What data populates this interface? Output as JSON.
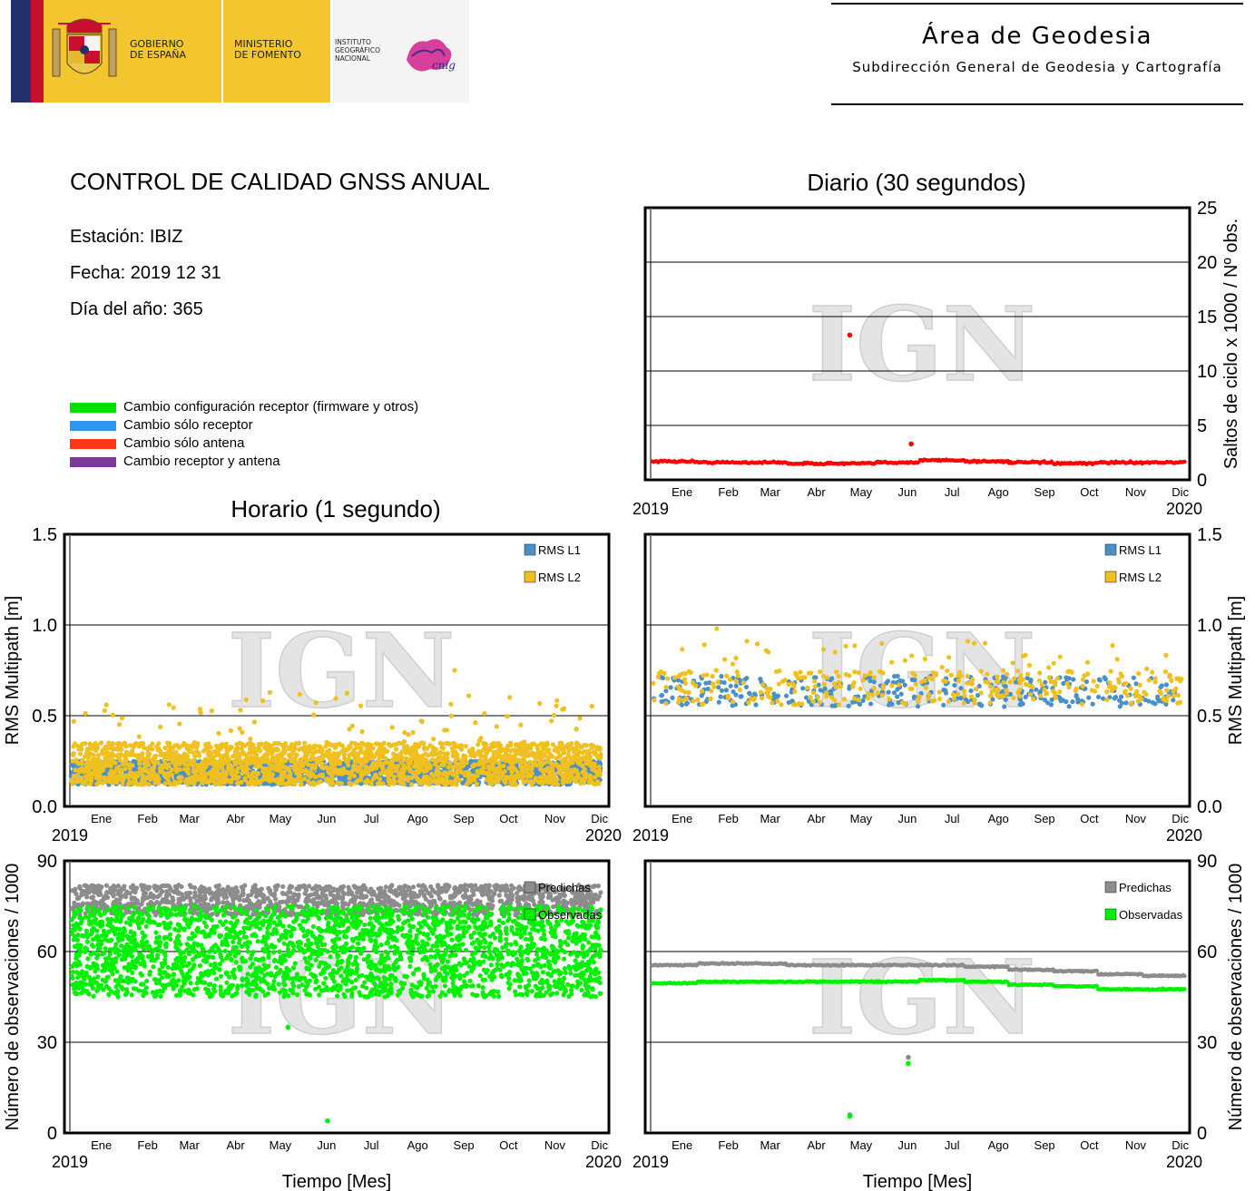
{
  "banner": {
    "government": [
      "GOBIERNO",
      "DE ESPAÑA"
    ],
    "ministry": [
      "MINISTERIO",
      "DE FOMENTO"
    ],
    "institute": [
      "INSTITUTO",
      "GEOGRÁFICO",
      "NACIONAL"
    ],
    "cnig_logo_text": "cnig"
  },
  "header": {
    "title": "Área de Geodesia",
    "subtitle": "Subdirección General de Geodesia y Cartografía"
  },
  "report": {
    "title": "CONTROL DE CALIDAD GNSS ANUAL",
    "station": "Estación: IBIZ",
    "date": "Fecha: 2019 12 31",
    "doy": "Día del año: 365"
  },
  "legend": [
    {
      "label": "Cambio configuración receptor (firmware y otros)",
      "color": "#00e000"
    },
    {
      "label": "Cambio sólo receptor",
      "color": "#2c96f0"
    },
    {
      "label": "Cambio sólo antena",
      "color": "#ff3a10"
    },
    {
      "label": "Cambio receptor y antena",
      "color": "#7a3a96"
    }
  ],
  "watermark": "IGN",
  "section_titles": {
    "daily": "Diario (30 segundos)",
    "hourly": "Horario (1 segundo)"
  },
  "months": [
    "Ene",
    "Feb",
    "Mar",
    "Abr",
    "May",
    "Jun",
    "Jul",
    "Ago",
    "Sep",
    "Oct",
    "Nov",
    "Dic"
  ],
  "year_start": "2019",
  "year_end": "2020",
  "colors": {
    "slips": "#ff0000",
    "rms_l1": "#4a90c8",
    "rms_l2": "#f0c020",
    "predicted": "#8c8c8c",
    "observed": "#00f000"
  },
  "chart_data": [
    {
      "id": "daily-slips",
      "type": "scatter",
      "section": "Diario (30 segundos)",
      "ylabel": "Saltos de ciclo x 1000 / Nº obs.",
      "ylim": [
        0,
        25
      ],
      "yticks": [
        0,
        5,
        10,
        15,
        20,
        25
      ],
      "grid": true,
      "series": [
        {
          "color": "#ff0000",
          "baseline_by_month": [
            1.7,
            1.6,
            1.6,
            1.5,
            1.5,
            1.6,
            1.8,
            1.7,
            1.6,
            1.5,
            1.6,
            1.6
          ],
          "outliers": [
            {
              "doy": 135,
              "value": 13.3
            },
            {
              "doy": 177,
              "value": 3.3
            }
          ]
        }
      ]
    },
    {
      "id": "hourly-multipath",
      "type": "scatter",
      "section": "Horario (1 segundo)",
      "ylabel": "RMS Multipath [m]",
      "ylim": [
        0,
        1.5
      ],
      "yticks": [
        0.0,
        0.5,
        1.0,
        1.5
      ],
      "grid": true,
      "series": [
        {
          "name": "RMS L1",
          "color": "#4a90c8",
          "typical_range": [
            0.12,
            0.25
          ]
        },
        {
          "name": "RMS L2",
          "color": "#f0c020",
          "typical_range": [
            0.12,
            0.35
          ],
          "max": 0.75
        }
      ]
    },
    {
      "id": "daily-multipath",
      "type": "scatter",
      "section": "Diario (30 segundos)",
      "ylabel": "RMS Multipath [m]",
      "ylim": [
        0,
        1.5
      ],
      "yticks": [
        0.0,
        0.5,
        1.0,
        1.5
      ],
      "grid": true,
      "series": [
        {
          "name": "RMS L1",
          "color": "#4a90c8",
          "typical_range": [
            0.55,
            0.72
          ]
        },
        {
          "name": "RMS L2",
          "color": "#f0c020",
          "typical_range": [
            0.56,
            0.75
          ],
          "max": 0.98
        }
      ]
    },
    {
      "id": "hourly-observations",
      "type": "scatter",
      "section": "Horario (1 segundo)",
      "xlabel": "Tiempo [Mes]",
      "ylabel": "Número de observaciones / 1000",
      "ylim": [
        0,
        90
      ],
      "yticks": [
        0,
        30,
        60,
        90
      ],
      "grid": true,
      "series": [
        {
          "name": "Predichas",
          "color": "#8c8c8c",
          "typical_range": [
            72,
            82
          ]
        },
        {
          "name": "Observadas",
          "color": "#00f000",
          "typical_range": [
            45,
            75
          ],
          "outliers": [
            {
              "doy": 175,
              "value": 4
            },
            {
              "doy": 148,
              "value": 35
            }
          ]
        }
      ]
    },
    {
      "id": "daily-observations",
      "type": "scatter",
      "section": "Diario (30 segundos)",
      "xlabel": "Tiempo [Mes]",
      "ylabel": "Número de observaciones / 1000",
      "ylim": [
        0,
        90
      ],
      "yticks": [
        0,
        30,
        60,
        90
      ],
      "grid": true,
      "series": [
        {
          "name": "Predichas",
          "color": "#8c8c8c",
          "values_by_month": [
            55.5,
            56,
            56,
            55.5,
            55.5,
            55.5,
            55.5,
            55,
            54,
            53.5,
            52.5,
            52
          ],
          "outliers": [
            {
              "doy": 175,
              "value": 25
            },
            {
              "doy": 135,
              "value": 6
            }
          ]
        },
        {
          "name": "Observadas",
          "color": "#00f000",
          "values_by_month": [
            49.5,
            50,
            50,
            50,
            50,
            50,
            50.5,
            50,
            49,
            48.5,
            47.5,
            47.5
          ],
          "outliers": [
            {
              "doy": 175,
              "value": 23
            },
            {
              "doy": 135,
              "value": 5.5
            }
          ]
        }
      ]
    }
  ]
}
